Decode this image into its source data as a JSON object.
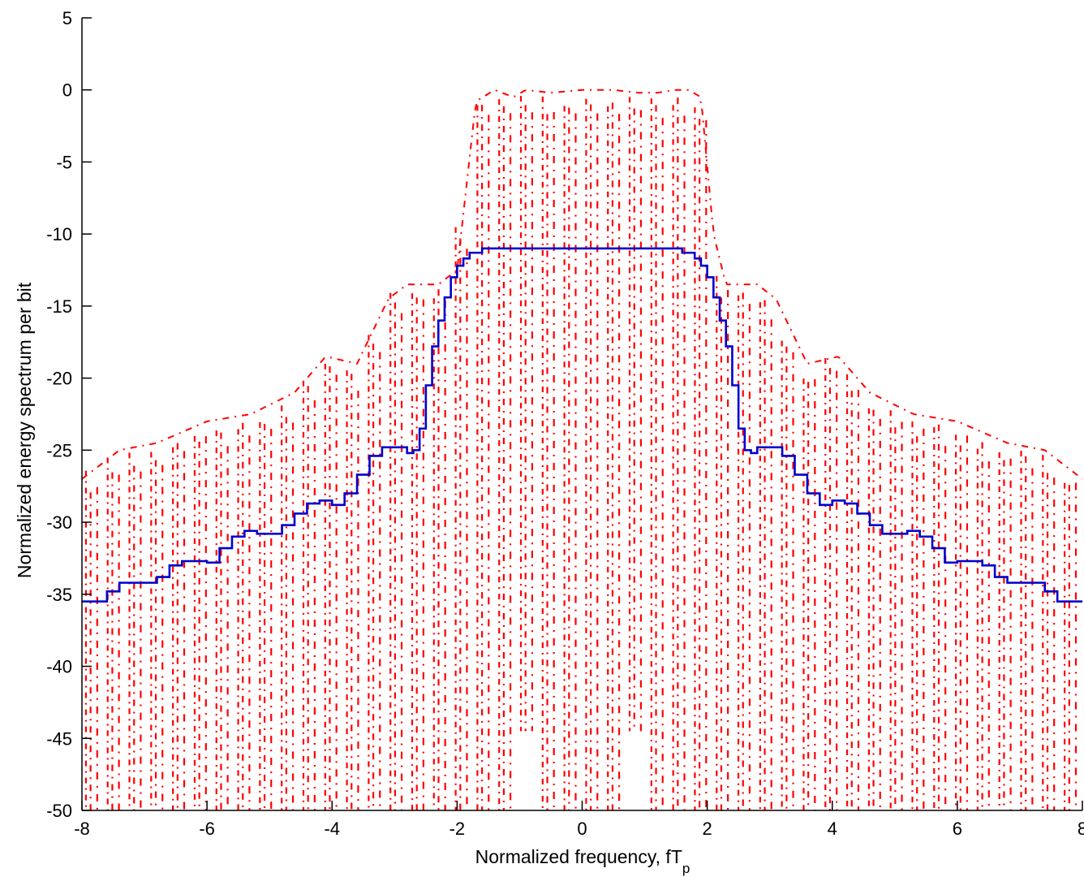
{
  "chart_data": {
    "type": "line",
    "xlabel": "Normalized frequency, fT",
    "xlabel_subscript": "p",
    "ylabel": "Normalized energy spectrum per bit",
    "xlim": [
      -8,
      8
    ],
    "ylim": [
      -50,
      5
    ],
    "x_ticks": [
      "-8",
      "-6",
      "-4",
      "-2",
      "0",
      "2",
      "4",
      "6",
      "8"
    ],
    "y_ticks": [
      "5",
      "0",
      "-5",
      "-10",
      "-15",
      "-20",
      "-25",
      "-30",
      "-35",
      "-40",
      "-45",
      "-50"
    ],
    "grid": false,
    "legend": "none",
    "series": [
      {
        "style": "dashed-dotted",
        "color": "#ff0000",
        "envelope": {
          "x": [
            -8,
            -7.4,
            -6.8,
            -6,
            -5.3,
            -4.6,
            -4.1,
            -3.6,
            -3.1,
            -2.8,
            -2.3,
            -2,
            -1.7,
            -1.4,
            -1.1,
            -0.9,
            -0.5,
            0,
            0.5,
            0.9,
            1.2,
            1.5,
            1.7,
            1.9,
            2.1,
            2.3,
            2.8,
            3.1,
            3.6,
            4.1,
            4.6,
            5.3,
            6,
            6.8,
            7.4,
            8
          ],
          "y": [
            -27,
            -25,
            -24.5,
            -23,
            -22.5,
            -21,
            -18.5,
            -19,
            -14.5,
            -13.5,
            -13.5,
            -12.5,
            -0.8,
            0,
            -0.5,
            0,
            -0.2,
            0,
            0,
            -0.2,
            -0.2,
            0,
            0,
            -0.5,
            -10,
            -13.5,
            -13.5,
            -14.5,
            -19,
            -18.5,
            -21,
            -22.5,
            -23,
            -24.5,
            -25,
            -27
          ]
        },
        "notch_x": [
          -0.75,
          0.75
        ],
        "notch_depth": -44.5
      },
      {
        "style": "solid",
        "color": "#0000cc",
        "x": [
          -8,
          -7.8,
          -7.6,
          -7.4,
          -7.2,
          -7.0,
          -6.8,
          -6.6,
          -6.4,
          -6.2,
          -6.0,
          -5.8,
          -5.6,
          -5.4,
          -5.2,
          -5.0,
          -4.8,
          -4.6,
          -4.4,
          -4.2,
          -4.0,
          -3.8,
          -3.6,
          -3.4,
          -3.2,
          -3.0,
          -2.8,
          -2.7,
          -2.6,
          -2.5,
          -2.4,
          -2.3,
          -2.2,
          -2.1,
          -2.0,
          -1.9,
          -1.8,
          -1.6,
          -1.4,
          -1.2,
          -1.0,
          -0.5,
          0,
          0.5,
          1.0,
          1.2,
          1.4,
          1.6,
          1.8,
          1.9,
          2.0,
          2.1,
          2.2,
          2.3,
          2.4,
          2.5,
          2.6,
          2.7,
          2.8,
          3.0,
          3.2,
          3.4,
          3.6,
          3.8,
          4.0,
          4.2,
          4.4,
          4.6,
          4.8,
          5.0,
          5.2,
          5.4,
          5.6,
          5.8,
          6.0,
          6.2,
          6.4,
          6.6,
          6.8,
          7.0,
          7.2,
          7.4,
          7.6,
          7.8,
          8
        ],
        "y": [
          -35.5,
          -35.5,
          -34.8,
          -34.2,
          -34.2,
          -34.2,
          -33.8,
          -33.0,
          -32.7,
          -32.7,
          -32.8,
          -31.8,
          -31.0,
          -30.6,
          -30.8,
          -30.8,
          -30.2,
          -29.4,
          -28.7,
          -28.5,
          -28.8,
          -28.0,
          -26.7,
          -25.4,
          -24.8,
          -24.8,
          -25.2,
          -25.0,
          -23.5,
          -20.5,
          -17.8,
          -16.0,
          -14.4,
          -13.0,
          -12.2,
          -11.7,
          -11.3,
          -11.0,
          -11.0,
          -11.0,
          -11.0,
          -11.0,
          -11.0,
          -11.0,
          -11.0,
          -11.0,
          -11.0,
          -11.3,
          -11.7,
          -12.2,
          -13.0,
          -14.4,
          -16.0,
          -17.8,
          -20.5,
          -23.5,
          -25.0,
          -25.2,
          -24.8,
          -24.8,
          -25.4,
          -26.7,
          -28.0,
          -28.8,
          -28.5,
          -28.7,
          -29.4,
          -30.2,
          -30.8,
          -30.8,
          -30.6,
          -31.0,
          -31.8,
          -32.8,
          -32.7,
          -32.7,
          -33.0,
          -33.8,
          -34.2,
          -34.2,
          -34.2,
          -34.8,
          -35.5,
          -35.5,
          -35.5
        ]
      }
    ]
  }
}
